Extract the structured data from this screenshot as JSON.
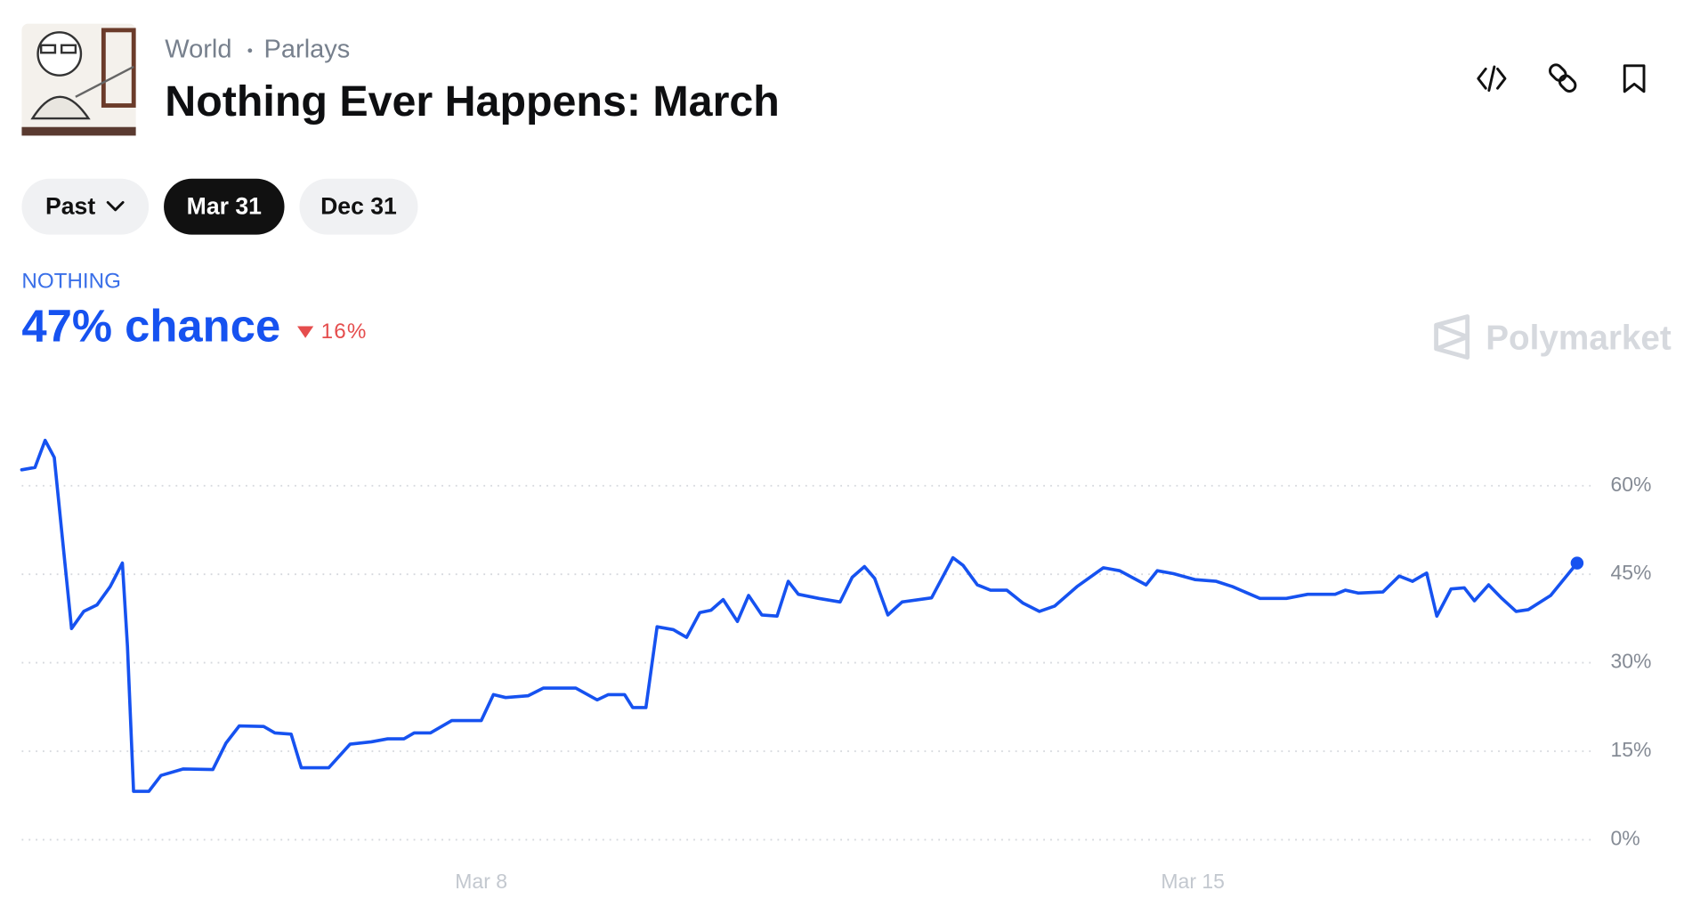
{
  "header": {
    "breadcrumbs": [
      "World",
      "Parlays"
    ],
    "title": "Nothing Ever Happens: March"
  },
  "filters": {
    "buttons": [
      "Past",
      "Mar 31",
      "Dec 31"
    ],
    "selected": "Mar 31"
  },
  "summary": {
    "chance": "47% chance",
    "change": "16%"
  },
  "brand": "Polymarket",
  "chart_data": {
    "type": "line",
    "x": [
      3.48,
      3.61,
      3.71,
      3.8,
      3.88,
      3.97,
      4.09,
      4.22,
      4.35,
      4.47,
      4.52,
      4.58,
      4.73,
      4.85,
      5.07,
      5.36,
      5.49,
      5.62,
      5.86,
      5.97,
      6.13,
      6.23,
      6.5,
      6.71,
      6.92,
      7.08,
      7.24,
      7.34,
      7.5,
      7.71,
      8.0,
      8.12,
      8.24,
      8.46,
      8.61,
      8.93,
      9.14,
      9.25,
      9.41,
      9.49,
      9.62,
      9.73,
      9.89,
      10.02,
      10.15,
      10.26,
      10.38,
      10.52,
      10.63,
      10.76,
      10.91,
      11.02,
      11.12,
      11.32,
      11.53,
      11.65,
      11.77,
      11.87,
      12.0,
      12.14,
      12.43,
      12.64,
      12.74,
      12.88,
      13.01,
      13.17,
      13.33,
      13.49,
      13.64,
      13.86,
      14.12,
      14.28,
      14.54,
      14.65,
      14.81,
      15.02,
      15.23,
      15.39,
      15.66,
      15.92,
      16.13,
      16.4,
      16.5,
      16.63,
      16.87,
      17.03,
      17.16,
      17.3,
      17.4,
      17.54,
      17.67,
      17.77,
      17.91,
      18.04,
      18.18,
      18.3,
      18.52,
      18.78
    ],
    "series": [
      {
        "name": "NOTHING",
        "color": "#1652f0",
        "values": [
          62.7,
          63.1,
          67.7,
          64.8,
          51.1,
          35.8,
          38.7,
          39.8,
          42.9,
          46.9,
          32.8,
          8.2,
          8.2,
          10.9,
          12.0,
          11.9,
          16.4,
          19.3,
          19.2,
          18.1,
          17.9,
          12.2,
          12.2,
          16.2,
          16.6,
          17.1,
          17.1,
          18.1,
          18.1,
          20.2,
          20.2,
          24.6,
          24.1,
          24.4,
          25.7,
          25.7,
          23.7,
          24.6,
          24.6,
          22.4,
          22.4,
          36.1,
          35.6,
          34.3,
          38.5,
          38.9,
          40.7,
          37.0,
          41.4,
          38.1,
          37.9,
          43.8,
          41.6,
          40.9,
          40.3,
          44.5,
          46.3,
          44.3,
          38.1,
          40.3,
          41.0,
          47.8,
          46.5,
          43.2,
          42.3,
          42.3,
          40.1,
          38.7,
          39.6,
          42.9,
          46.1,
          45.6,
          43.2,
          45.6,
          45.1,
          44.1,
          43.8,
          42.9,
          40.9,
          40.9,
          41.6,
          41.6,
          42.3,
          41.8,
          42.0,
          44.7,
          43.8,
          45.2,
          37.9,
          42.5,
          42.7,
          40.5,
          43.2,
          40.9,
          38.7,
          39.0,
          41.4,
          46.9
        ]
      }
    ],
    "xlim": [
      3.48,
      18.94
    ],
    "xticks": [
      {
        "value": 8,
        "label": "Mar 8"
      },
      {
        "value": 15,
        "label": "Mar 15"
      }
    ],
    "ylim": [
      -4,
      73
    ],
    "yticks": [
      {
        "value": 0,
        "label": "0%"
      },
      {
        "value": 15,
        "label": "15%"
      },
      {
        "value": 30,
        "label": "30%"
      },
      {
        "value": 45,
        "label": "45%"
      },
      {
        "value": 60,
        "label": "60%"
      }
    ],
    "grid": true,
    "end_marker": true
  }
}
